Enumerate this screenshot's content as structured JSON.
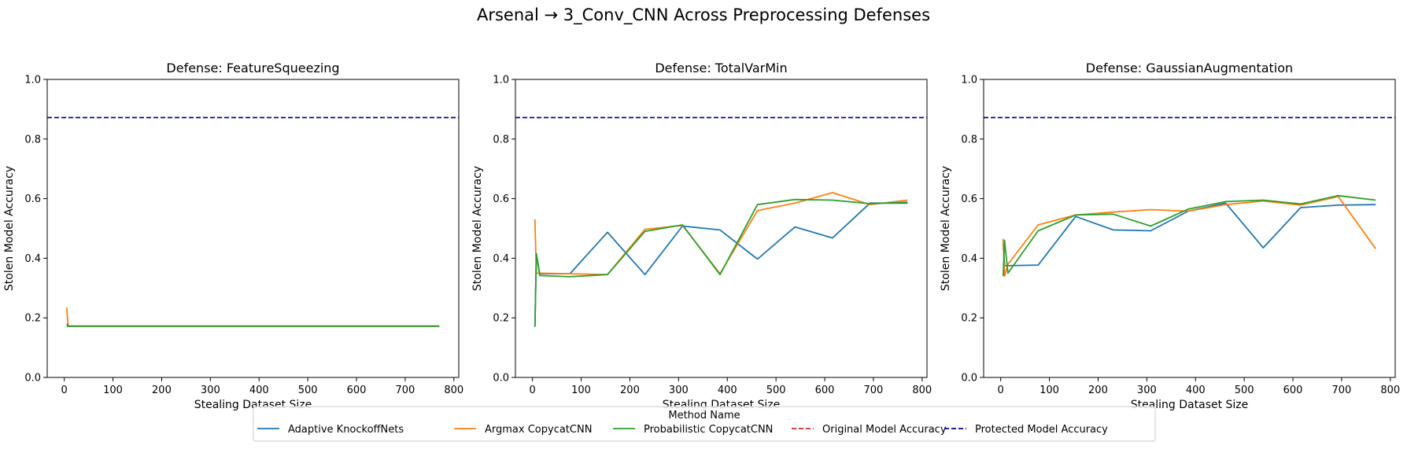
{
  "suptitle": "Arsenal → 3_Conv_CNN Across Preprocessing Defenses",
  "legend": {
    "title": "Method Name",
    "entries": [
      {
        "label": "Adaptive KnockoffNets",
        "color": "#1f77b4",
        "style": "solid"
      },
      {
        "label": "Argmax CopycatCNN",
        "color": "#ff7f0e",
        "style": "solid"
      },
      {
        "label": "Probabilistic CopycatCNN",
        "color": "#2ca02c",
        "style": "solid"
      },
      {
        "label": "Original Model Accuracy",
        "color": "#d62728",
        "style": "dashed"
      },
      {
        "label": "Protected Model Accuracy",
        "color": "#0000aa",
        "style": "dashed"
      }
    ]
  },
  "chart_data": [
    {
      "type": "line",
      "title": "Defense: FeatureSqueezing",
      "xlabel": "Stealing Dataset Size",
      "ylabel": "Stolen Model Accuracy",
      "xlim": [
        -35,
        810
      ],
      "ylim": [
        0,
        1
      ],
      "xticks": [
        0,
        100,
        200,
        300,
        400,
        500,
        600,
        700,
        800
      ],
      "yticks": [
        0.0,
        0.2,
        0.4,
        0.6,
        0.8,
        1.0
      ],
      "hlines": [
        {
          "name": "Protected Model Accuracy",
          "y": 0.872,
          "color": "#0000aa"
        }
      ],
      "series": [
        {
          "name": "Adaptive KnockoffNets",
          "color": "#1f77b4",
          "x": [
            5,
            8,
            15,
            77,
            154,
            231,
            308,
            385,
            462,
            539,
            616,
            693,
            770
          ],
          "y": [
            0.172,
            0.172,
            0.172,
            0.172,
            0.172,
            0.172,
            0.172,
            0.172,
            0.172,
            0.172,
            0.172,
            0.172,
            0.172
          ]
        },
        {
          "name": "Argmax CopycatCNN",
          "color": "#ff7f0e",
          "x": [
            5,
            8,
            15,
            77,
            154,
            231,
            308,
            385,
            462,
            539,
            616,
            693,
            770
          ],
          "y": [
            0.235,
            0.172,
            0.172,
            0.172,
            0.172,
            0.172,
            0.172,
            0.172,
            0.172,
            0.172,
            0.172,
            0.172,
            0.172
          ]
        },
        {
          "name": "Probabilistic CopycatCNN",
          "color": "#2ca02c",
          "x": [
            5,
            8,
            15,
            77,
            154,
            231,
            308,
            385,
            462,
            539,
            616,
            693,
            770
          ],
          "y": [
            0.18,
            0.172,
            0.172,
            0.172,
            0.172,
            0.172,
            0.172,
            0.172,
            0.172,
            0.172,
            0.172,
            0.172,
            0.172
          ]
        }
      ]
    },
    {
      "type": "line",
      "title": "Defense: TotalVarMin",
      "xlabel": "Stealing Dataset Size",
      "ylabel": "Stolen Model Accuracy",
      "xlim": [
        -35,
        810
      ],
      "ylim": [
        0,
        1
      ],
      "xticks": [
        0,
        100,
        200,
        300,
        400,
        500,
        600,
        700,
        800
      ],
      "yticks": [
        0.0,
        0.2,
        0.4,
        0.6,
        0.8,
        1.0
      ],
      "hlines": [
        {
          "name": "Protected Model Accuracy",
          "y": 0.872,
          "color": "#0000aa"
        }
      ],
      "series": [
        {
          "name": "Adaptive KnockoffNets",
          "color": "#1f77b4",
          "x": [
            5,
            8,
            15,
            77,
            154,
            231,
            308,
            385,
            462,
            539,
            616,
            693,
            770
          ],
          "y": [
            0.17,
            0.415,
            0.348,
            0.348,
            0.487,
            0.345,
            0.508,
            0.495,
            0.397,
            0.505,
            0.468,
            0.585,
            0.585
          ]
        },
        {
          "name": "Argmax CopycatCNN",
          "color": "#ff7f0e",
          "x": [
            5,
            8,
            15,
            77,
            154,
            231,
            308,
            385,
            462,
            539,
            616,
            693,
            770
          ],
          "y": [
            0.53,
            0.35,
            0.35,
            0.348,
            0.345,
            0.497,
            0.51,
            0.348,
            0.56,
            0.585,
            0.62,
            0.58,
            0.595
          ]
        },
        {
          "name": "Probabilistic CopycatCNN",
          "color": "#2ca02c",
          "x": [
            5,
            8,
            15,
            77,
            154,
            231,
            308,
            385,
            462,
            539,
            616,
            693,
            770
          ],
          "y": [
            0.17,
            0.415,
            0.342,
            0.338,
            0.345,
            0.49,
            0.512,
            0.345,
            0.58,
            0.597,
            0.595,
            0.583,
            0.588
          ]
        }
      ]
    },
    {
      "type": "line",
      "title": "Defense: GaussianAugmentation",
      "xlabel": "Stealing Dataset Size",
      "ylabel": "Stolen Model Accuracy",
      "xlim": [
        -35,
        810
      ],
      "ylim": [
        0,
        1
      ],
      "xticks": [
        0,
        100,
        200,
        300,
        400,
        500,
        600,
        700,
        800
      ],
      "yticks": [
        0.0,
        0.2,
        0.4,
        0.6,
        0.8,
        1.0
      ],
      "hlines": [
        {
          "name": "Protected Model Accuracy",
          "y": 0.872,
          "color": "#0000aa"
        }
      ],
      "series": [
        {
          "name": "Adaptive KnockoffNets",
          "color": "#1f77b4",
          "x": [
            5,
            8,
            15,
            77,
            154,
            231,
            308,
            385,
            462,
            539,
            616,
            693,
            770
          ],
          "y": [
            0.45,
            0.375,
            0.375,
            0.377,
            0.54,
            0.495,
            0.492,
            0.558,
            0.585,
            0.435,
            0.57,
            0.578,
            0.58
          ]
        },
        {
          "name": "Argmax CopycatCNN",
          "color": "#ff7f0e",
          "x": [
            5,
            8,
            15,
            77,
            154,
            231,
            308,
            385,
            462,
            539,
            616,
            693,
            770
          ],
          "y": [
            0.465,
            0.34,
            0.38,
            0.512,
            0.545,
            0.555,
            0.563,
            0.558,
            0.58,
            0.592,
            0.578,
            0.607,
            0.432
          ]
        },
        {
          "name": "Probabilistic CopycatCNN",
          "color": "#2ca02c",
          "x": [
            5,
            8,
            15,
            77,
            154,
            231,
            308,
            385,
            462,
            539,
            616,
            693,
            770
          ],
          "y": [
            0.34,
            0.46,
            0.35,
            0.492,
            0.545,
            0.548,
            0.508,
            0.565,
            0.59,
            0.595,
            0.582,
            0.61,
            0.595
          ]
        }
      ]
    }
  ]
}
